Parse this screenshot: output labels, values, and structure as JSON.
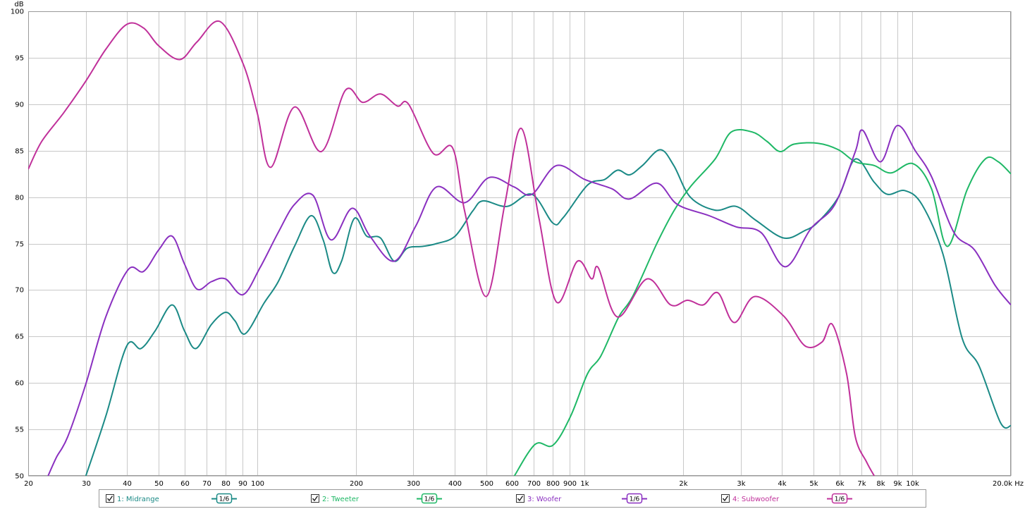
{
  "chart_data": {
    "type": "line",
    "ylabel": "dB",
    "xscale": "log",
    "grid": true,
    "xlim": [
      20,
      20000
    ],
    "ylim": [
      50,
      100
    ],
    "yticks": [
      50,
      55,
      60,
      65,
      70,
      75,
      80,
      85,
      90,
      95,
      100
    ],
    "xticks": [
      20,
      30,
      40,
      50,
      60,
      70,
      80,
      90,
      100,
      200,
      300,
      400,
      500,
      600,
      700,
      800,
      900,
      {
        "value": 1000,
        "label": "1k"
      },
      {
        "value": 2000,
        "label": "2k"
      },
      {
        "value": 3000,
        "label": "3k"
      },
      {
        "value": 4000,
        "label": "4k"
      },
      {
        "value": 5000,
        "label": "5k"
      },
      {
        "value": 6000,
        "label": "6k"
      },
      {
        "value": 7000,
        "label": "7k"
      },
      {
        "value": 8000,
        "label": "8k"
      },
      {
        "value": 9000,
        "label": "9k"
      },
      {
        "value": 10000,
        "label": "10k"
      },
      {
        "value": 20000,
        "label": "20.0k Hz"
      }
    ],
    "series": [
      {
        "name": "1: Midrange",
        "color": "#1b8a86",
        "smoothing": "1/6",
        "x": [
          30,
          34.5,
          40,
          44.2,
          48.8,
          55,
          60,
          65,
          72.5,
          80,
          85.5,
          92,
          105,
          116,
          130,
          146,
          159,
          170,
          181,
          198,
          216,
          238,
          262,
          287,
          320,
          353,
          402,
          455,
          490,
          580,
          690,
          800,
          860,
          1020,
          1150,
          1260,
          1370,
          1500,
          1700,
          1870,
          2100,
          2500,
          2900,
          3330,
          4050,
          4700,
          5150,
          5950,
          6700,
          7650,
          8400,
          9500,
          10700,
          12400,
          14200,
          16000,
          18600,
          20000
        ],
        "values": [
          50.0,
          56.4,
          64.0,
          63.7,
          65.6,
          68.4,
          65.6,
          63.7,
          66.3,
          67.6,
          66.7,
          65.3,
          68.6,
          70.9,
          74.7,
          78.0,
          75.4,
          71.9,
          73.1,
          77.7,
          75.8,
          75.6,
          73.1,
          74.5,
          74.7,
          75.0,
          75.8,
          78.5,
          79.6,
          79.0,
          80.3,
          77.2,
          77.8,
          81.3,
          81.9,
          82.9,
          82.4,
          83.4,
          85.1,
          83.4,
          80.0,
          78.6,
          79.0,
          77.5,
          75.6,
          76.4,
          77.3,
          80.0,
          84.1,
          81.6,
          80.3,
          80.7,
          79.2,
          73.9,
          64.8,
          61.8,
          55.7,
          55.4
        ]
      },
      {
        "name": "2: Tweeter",
        "color": "#1fb866",
        "smoothing": "1/6",
        "x": [
          610,
          706,
          800,
          905,
          1020,
          1120,
          1270,
          1400,
          1660,
          1870,
          2100,
          2500,
          2800,
          3250,
          3600,
          3950,
          4350,
          5150,
          5950,
          6700,
          7650,
          8600,
          10050,
          11450,
          12800,
          14700,
          16700,
          18300,
          20000
        ],
        "values": [
          50.0,
          53.4,
          53.3,
          56.4,
          61.0,
          62.9,
          67.1,
          69.3,
          75.0,
          78.5,
          81.1,
          84.1,
          87.0,
          87.0,
          86.0,
          84.9,
          85.7,
          85.8,
          85.1,
          83.8,
          83.4,
          82.6,
          83.6,
          80.9,
          74.7,
          80.8,
          84.1,
          83.8,
          82.5
        ]
      },
      {
        "name": "3: Woofer",
        "color": "#8a30c0",
        "smoothing": "1/6",
        "x": [
          23,
          24.4,
          26.4,
          30,
          34.5,
          40.4,
          45,
          50,
          55,
          60,
          65.5,
          72.5,
          80,
          90.5,
          102,
          116,
          130,
          148,
          168,
          195,
          221,
          262,
          305,
          353,
          430,
          510,
          608,
          690,
          820,
          1000,
          1210,
          1370,
          1660,
          1920,
          2400,
          2900,
          3450,
          4100,
          4900,
          5800,
          6700,
          7050,
          8000,
          9000,
          10250,
          11450,
          13400,
          15500,
          17900,
          20000
        ],
        "values": [
          50.0,
          52.0,
          54.2,
          59.9,
          67.1,
          72.2,
          72.0,
          74.3,
          75.8,
          72.8,
          70.1,
          70.9,
          71.2,
          69.5,
          72.4,
          76.2,
          79.2,
          80.2,
          75.4,
          78.8,
          75.8,
          73.1,
          76.9,
          81.1,
          79.4,
          82.1,
          81.1,
          80.3,
          83.4,
          81.9,
          80.9,
          79.8,
          81.5,
          79.2,
          78.0,
          76.8,
          76.2,
          72.5,
          76.6,
          79.2,
          84.9,
          87.2,
          83.8,
          87.7,
          84.9,
          82.2,
          76.2,
          74.3,
          70.5,
          68.4
        ]
      },
      {
        "name": "4: Subwoofer",
        "color": "#c0309a",
        "smoothing": "1/6",
        "x": [
          20,
          22,
          25.7,
          30,
          34.5,
          40,
          45,
          50,
          58,
          65.5,
          77,
          90.5,
          100,
          110,
          130,
          157,
          186,
          210,
          238,
          268,
          290,
          345,
          395,
          430,
          500,
          570,
          640,
          725,
          820,
          950,
          1050,
          1100,
          1260,
          1550,
          1830,
          2060,
          2300,
          2550,
          2860,
          3300,
          4050,
          4700,
          5300,
          5700,
          6300,
          6700,
          7250,
          7650
        ],
        "values": [
          83.0,
          86.0,
          89.1,
          92.5,
          95.9,
          98.6,
          98.2,
          96.3,
          94.8,
          96.7,
          98.9,
          94.4,
          89.1,
          83.2,
          89.7,
          84.9,
          91.5,
          90.2,
          91.1,
          89.8,
          90.0,
          84.7,
          85.3,
          78.5,
          69.3,
          79.2,
          87.4,
          77.7,
          68.7,
          73.1,
          71.2,
          72.4,
          67.1,
          71.2,
          68.4,
          68.9,
          68.4,
          69.7,
          66.5,
          69.3,
          67.2,
          64.0,
          64.4,
          66.3,
          61.0,
          54.2,
          51.5,
          50.0
        ]
      }
    ]
  }
}
